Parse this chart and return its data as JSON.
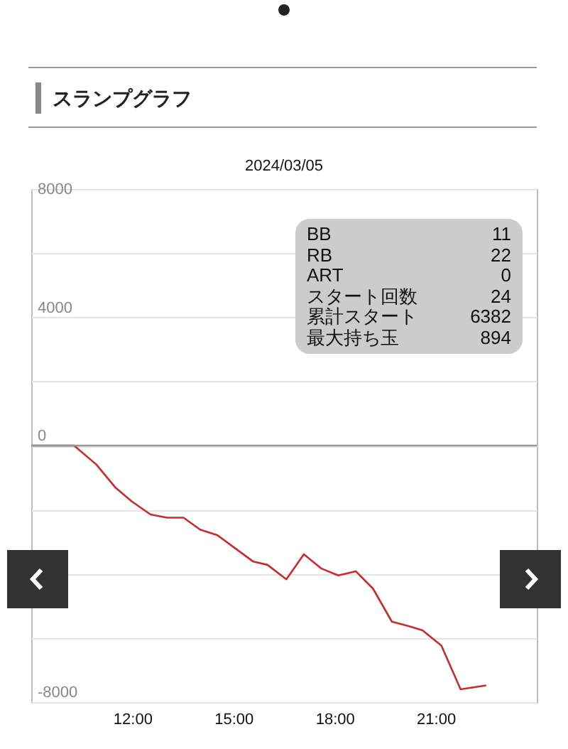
{
  "chart_data": {
    "type": "line",
    "title": "スランプグラフ",
    "subtitle": "2024/03/05",
    "x": [
      9.0,
      10.27,
      10.93,
      11.49,
      11.98,
      12.54,
      13.03,
      13.52,
      14.01,
      14.53,
      15.06,
      15.59,
      16.01,
      16.57,
      17.09,
      17.6,
      18.11,
      18.63,
      19.14,
      19.7,
      20.23,
      20.61,
      21.17,
      21.74,
      22.5
    ],
    "series": [
      {
        "color": "#cc2a2a",
        "values": [
          0,
          0,
          -590,
          -1300,
          -1740,
          -2150,
          -2250,
          -2250,
          -2620,
          -2800,
          -3210,
          -3620,
          -3720,
          -4170,
          -3390,
          -3830,
          -4050,
          -3920,
          -4460,
          -5490,
          -5640,
          -5760,
          -6240,
          -7600,
          -7480
        ]
      }
    ],
    "xlim": [
      9,
      24
    ],
    "xticks": [
      {
        "value": 12,
        "label": "12:00"
      },
      {
        "value": 15,
        "label": "15:00"
      },
      {
        "value": 18,
        "label": "18:00"
      },
      {
        "value": 21,
        "label": "21:00"
      }
    ],
    "ylim": [
      -8000,
      8000
    ],
    "yticks": [
      8000,
      {
        "value": 6000,
        "label": null
      },
      4000,
      {
        "value": 2000,
        "label": null
      },
      0,
      {
        "value": -2000,
        "label": null
      },
      {
        "value": -4000,
        "label": null
      },
      {
        "value": -6000,
        "label": null
      },
      -8000
    ],
    "grid": "y",
    "ref_lines": [
      {
        "axis": "y",
        "value": 0,
        "color": "#999999"
      }
    ],
    "line_style": "solid",
    "annotations": [
      "BB 11",
      "RB 22",
      "ART 0",
      "スタート回数 24",
      "累計スタート 6382",
      "最大持ち玉 894"
    ]
  }
}
